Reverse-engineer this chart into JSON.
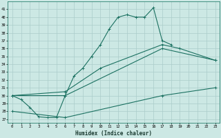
{
  "xlabel": "Humidex (Indice chaleur)",
  "background_color": "#cce8e4",
  "grid_color": "#aaccca",
  "line_color": "#1a7060",
  "x_ticks": [
    0,
    1,
    2,
    3,
    4,
    5,
    6,
    7,
    8,
    9,
    10,
    11,
    12,
    13,
    14,
    15,
    16,
    17,
    18,
    19,
    20,
    21,
    22,
    23
  ],
  "y_ticks": [
    27,
    28,
    29,
    30,
    31,
    32,
    33,
    34,
    35,
    36,
    37,
    38,
    39,
    40,
    41
  ],
  "ylim": [
    26.5,
    42.0
  ],
  "xlim": [
    -0.5,
    23.5
  ],
  "series1_x": [
    0,
    1,
    2,
    3,
    4,
    5,
    6,
    7,
    8,
    9,
    10,
    11,
    12,
    13,
    14,
    15,
    16,
    17,
    18
  ],
  "series1_y": [
    30,
    29.5,
    28.5,
    27.3,
    27.2,
    27.2,
    30.0,
    32.5,
    33.5,
    35.0,
    36.5,
    38.5,
    40.0,
    40.3,
    40.0,
    40.0,
    41.2,
    37.0,
    36.5
  ],
  "series2_x": [
    0,
    6,
    10,
    17,
    19,
    23
  ],
  "series2_y": [
    30.0,
    30.5,
    33.5,
    36.5,
    36.0,
    34.5
  ],
  "series3_x": [
    0,
    6,
    17,
    23
  ],
  "series3_y": [
    30.0,
    30.0,
    36.0,
    34.5
  ],
  "series4_x": [
    0,
    6,
    17,
    23
  ],
  "series4_y": [
    28.0,
    27.2,
    30.0,
    31.0
  ]
}
